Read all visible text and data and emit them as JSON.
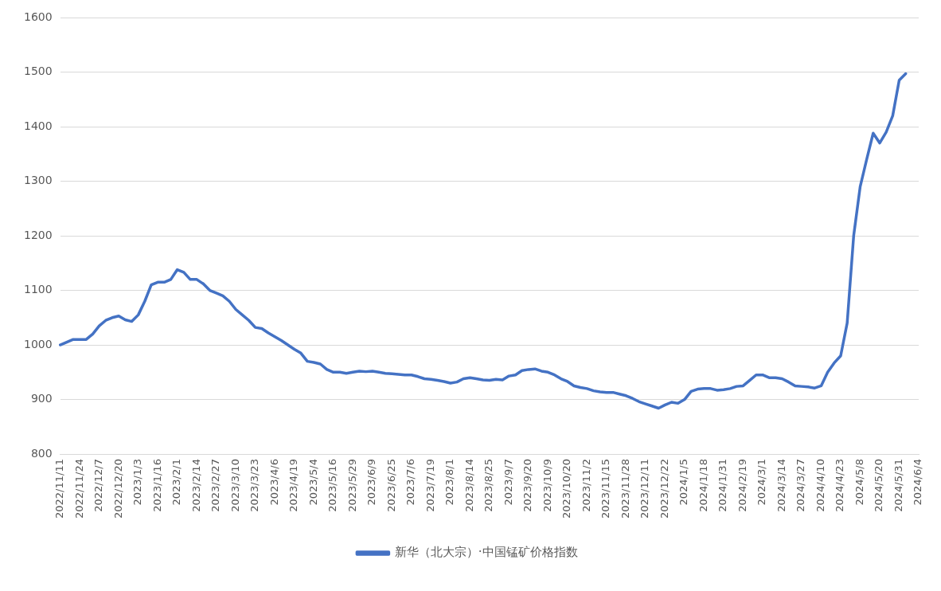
{
  "chart_data": {
    "type": "line",
    "categories": [
      "2022/11/11",
      null,
      null,
      "2022/11/24",
      null,
      null,
      "2022/12/7",
      null,
      null,
      "2022/12/20",
      null,
      null,
      "2023/1/3",
      null,
      null,
      "2023/1/16",
      null,
      null,
      "2023/2/1",
      null,
      null,
      "2023/2/14",
      null,
      null,
      "2023/2/27",
      null,
      null,
      "2023/3/10",
      null,
      null,
      "2023/3/23",
      null,
      null,
      "2023/4/6",
      null,
      null,
      "2023/4/19",
      null,
      null,
      "2023/5/4",
      null,
      null,
      "2023/5/16",
      null,
      null,
      "2023/5/29",
      null,
      null,
      "2023/6/9",
      null,
      null,
      "2023/6/25",
      null,
      null,
      "2023/7/6",
      null,
      null,
      "2023/7/19",
      null,
      null,
      "2023/8/1",
      null,
      null,
      "2023/8/14",
      null,
      null,
      "2023/8/25",
      null,
      null,
      "2023/9/7",
      null,
      null,
      "2023/9/20",
      null,
      null,
      "2023/10/9",
      null,
      null,
      "2023/10/20",
      null,
      null,
      "2023/11/2",
      null,
      null,
      "2023/11/15",
      null,
      null,
      "2023/11/28",
      null,
      null,
      "2023/12/11",
      null,
      null,
      "2023/12/22",
      null,
      null,
      "2024/1/5",
      null,
      null,
      "2024/1/18",
      null,
      null,
      "2024/1/31",
      null,
      null,
      "2024/2/19",
      null,
      null,
      "2024/3/1",
      null,
      null,
      "2024/3/14",
      null,
      null,
      "2024/3/27",
      null,
      null,
      "2024/4/10",
      null,
      null,
      "2024/4/23",
      null,
      null,
      "2024/5/8",
      null,
      null,
      "2024/5/20",
      null,
      null,
      "2024/5/31",
      null,
      null,
      "2024/6/4"
    ],
    "series": [
      {
        "name": "新华（北大宗）·中国锰矿价格指数",
        "color": "#4472c4",
        "values": [
          1000,
          1005,
          1010,
          1010,
          1010,
          1020,
          1035,
          1045,
          1050,
          1053,
          1046,
          1043,
          1055,
          1080,
          1110,
          1115,
          1115,
          1120,
          1138,
          1133,
          1120,
          1120,
          1112,
          1100,
          1095,
          1090,
          1080,
          1065,
          1055,
          1045,
          1032,
          1030,
          1022,
          1015,
          1008,
          1000,
          992,
          985,
          970,
          968,
          965,
          955,
          950,
          950,
          948,
          950,
          952,
          951,
          952,
          950,
          948,
          947,
          946,
          945,
          945,
          942,
          938,
          937,
          935,
          933,
          930,
          932,
          938,
          940,
          938,
          936,
          935,
          937,
          936,
          943,
          945,
          953,
          955,
          956,
          952,
          950,
          945,
          938,
          933,
          925,
          922,
          920,
          916,
          914,
          913,
          913,
          910,
          907,
          902,
          896,
          892,
          888,
          884,
          890,
          895,
          893,
          900,
          915,
          919,
          920,
          920,
          917,
          918,
          920,
          924,
          925,
          935,
          945,
          945,
          940,
          940,
          938,
          932,
          925,
          924,
          923,
          921,
          925,
          950,
          967,
          980,
          1040,
          1200,
          1290,
          1340,
          1388,
          1370,
          1390,
          1420,
          1485,
          1497,
          null,
          null
        ]
      }
    ],
    "ylim": [
      800,
      1600
    ],
    "yticks": [
      800,
      900,
      1000,
      1100,
      1200,
      1300,
      1400,
      1500,
      1600
    ],
    "grid": "y",
    "legend": "bottom",
    "marker": "none",
    "line_style": "solid"
  }
}
